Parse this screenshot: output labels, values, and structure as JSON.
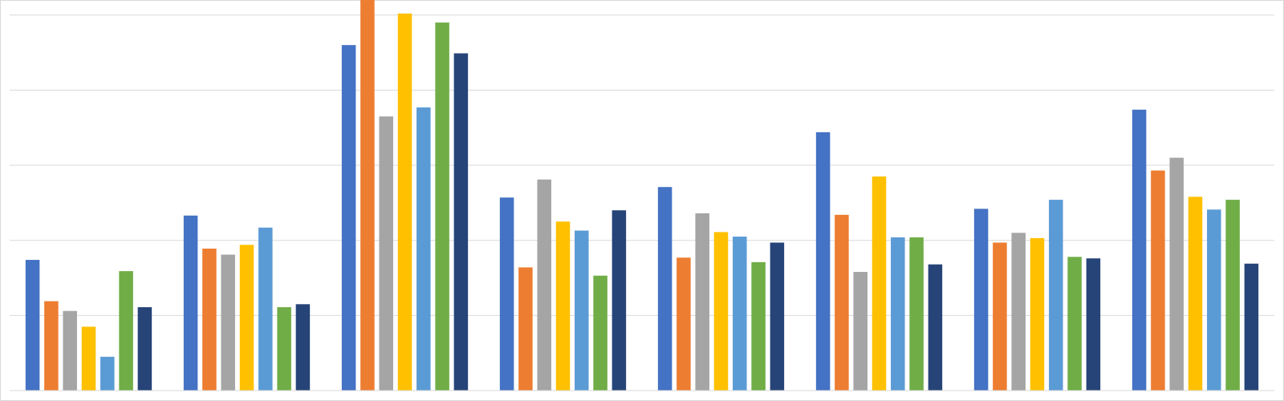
{
  "chart_data": {
    "type": "bar",
    "categories": [
      null,
      null,
      null,
      null,
      null,
      null,
      null,
      null
    ],
    "series": [
      {
        "color": "#4472c4",
        "values": [
          1.74,
          2.33,
          4.6,
          2.57,
          2.71,
          3.44,
          2.42,
          3.74
        ]
      },
      {
        "color": "#ed7d31",
        "values": [
          1.19,
          1.89,
          5.2,
          1.64,
          1.77,
          2.34,
          1.97,
          2.93
        ]
      },
      {
        "color": "#a5a5a5",
        "values": [
          1.06,
          1.81,
          3.65,
          2.81,
          2.36,
          1.58,
          2.1,
          3.1
        ]
      },
      {
        "color": "#ffc000",
        "values": [
          0.85,
          1.94,
          5.02,
          2.25,
          2.11,
          2.85,
          2.03,
          2.58
        ]
      },
      {
        "color": "#5b9bd5",
        "values": [
          0.45,
          2.17,
          3.77,
          2.13,
          2.05,
          2.04,
          2.54,
          2.41
        ]
      },
      {
        "color": "#70ad47",
        "values": [
          1.59,
          1.11,
          4.9,
          1.53,
          1.71,
          2.04,
          1.78,
          2.54
        ]
      },
      {
        "color": "#264478",
        "values": [
          1.11,
          1.15,
          4.49,
          2.4,
          1.97,
          1.68,
          1.76,
          1.69
        ]
      }
    ],
    "ylim": [
      0,
      5.2
    ],
    "yticks": [
      0,
      1,
      2,
      3,
      4,
      5
    ],
    "grid": true
  }
}
